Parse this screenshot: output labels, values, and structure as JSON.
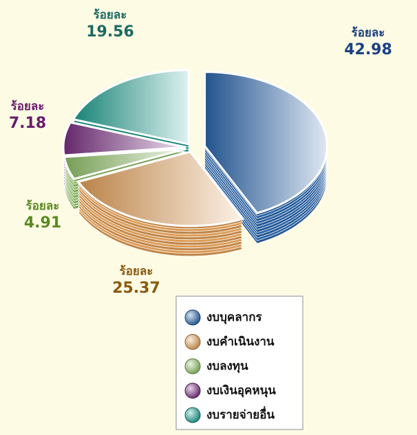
{
  "chart_data": {
    "type": "pie3d",
    "categories": [
      "งบบุคลากร",
      "งบคำเนินงาน",
      "งบลงทุน",
      "งบเงินอุคหนุน",
      "งบรายจ่ายอื่น"
    ],
    "values": [
      42.98,
      25.37,
      4.91,
      7.18,
      19.56
    ],
    "value_prefix": "ร้อยละ",
    "colors": [
      "#2a68b0",
      "#e9a45a",
      "#94c66a",
      "#7d2f86",
      "#1ea493"
    ],
    "label_colors": [
      "#1b3f82",
      "#8a5a12",
      "#5b8a22",
      "#6b1a6e",
      "#1b6a62"
    ]
  }
}
